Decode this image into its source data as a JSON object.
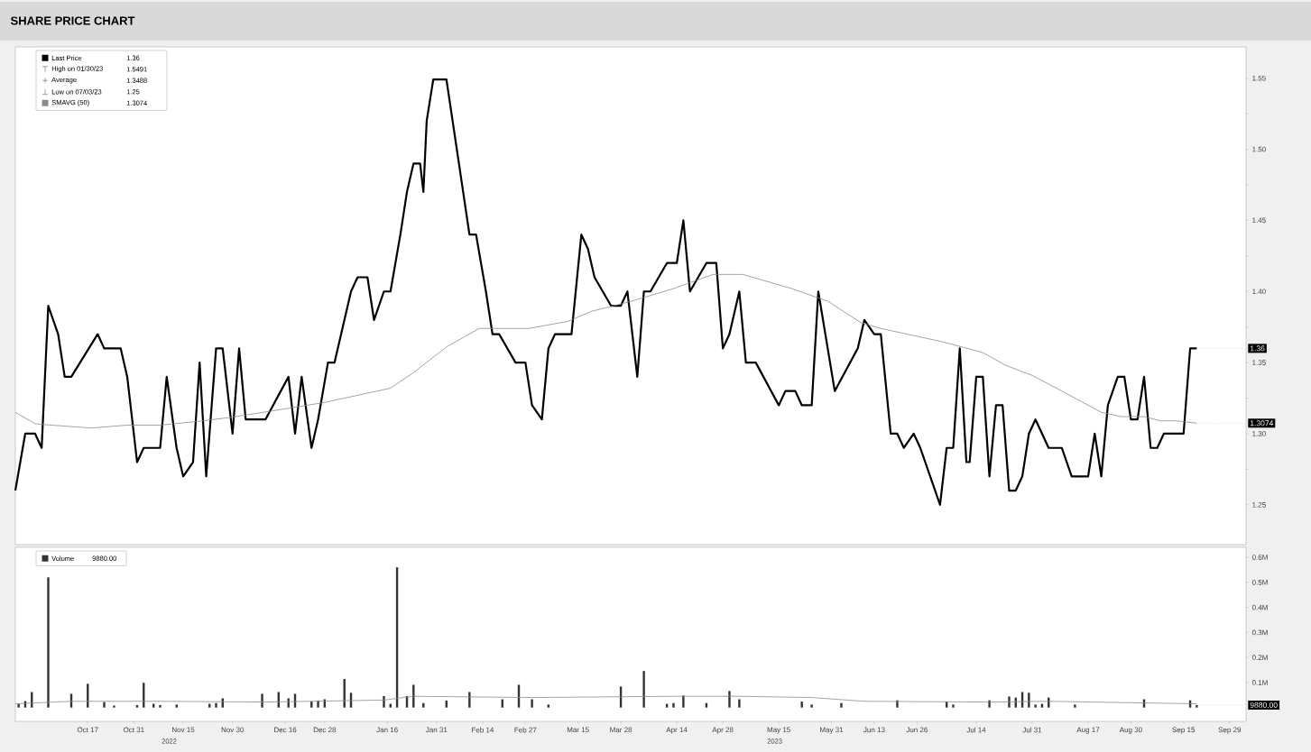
{
  "chart_data": [
    {
      "type": "line",
      "title": "SHARE PRICE CHART",
      "legend": "top left",
      "tick_labels": "y",
      "xlim": [
        "2022-09-25",
        "2023-10-04"
      ],
      "ylim": [
        1.222,
        1.572
      ],
      "yticks": [
        {
          "value": 1.25,
          "label": "1.25"
        },
        {
          "value": 1.275,
          "label": null
        },
        {
          "value": 1.3,
          "label": "1.30"
        },
        {
          "value": 1.325,
          "label": null
        },
        {
          "value": 1.35,
          "label": "1.35"
        },
        {
          "value": 1.375,
          "label": null
        },
        {
          "value": 1.4,
          "label": "1.40"
        },
        {
          "value": 1.425,
          "label": null
        },
        {
          "value": 1.45,
          "label": "1.45"
        },
        {
          "value": 1.475,
          "label": null
        },
        {
          "value": 1.5,
          "label": "1.50"
        },
        {
          "value": 1.525,
          "label": null
        },
        {
          "value": 1.55,
          "label": "1.55"
        }
      ],
      "annotations": [
        "1.36",
        "High on 01/30/23",
        "1.5491",
        "Average",
        "1.3488",
        "Low on 07/03/23",
        "1.25",
        "1.3074",
        {
          "text": "1.36",
          "x": "2023-09-19",
          "y": 1.36
        },
        {
          "text": "1.3074",
          "x": "2023-09-19",
          "y": 1.3074
        }
      ],
      "series": [
        {
          "name": "Last Price",
          "color": "#000000",
          "x": [
            "2022-09-25",
            "2022-09-28",
            "2022-10-01",
            "2022-10-03",
            "2022-10-05",
            "2022-10-08",
            "2022-10-10",
            "2022-10-12",
            "2022-10-20",
            "2022-10-22",
            "2022-10-27",
            "2022-10-29",
            "2022-11-01",
            "2022-11-03",
            "2022-11-08",
            "2022-11-10",
            "2022-11-13",
            "2022-11-15",
            "2022-11-18",
            "2022-11-20",
            "2022-11-22",
            "2022-11-25",
            "2022-11-27",
            "2022-11-30",
            "2022-12-02",
            "2022-12-04",
            "2022-12-10",
            "2022-12-17",
            "2022-12-19",
            "2022-12-21",
            "2022-12-24",
            "2022-12-26",
            "2022-12-29",
            "2022-12-31",
            "2023-01-03",
            "2023-01-05",
            "2023-01-07",
            "2023-01-10",
            "2023-01-12",
            "2023-01-15",
            "2023-01-17",
            "2023-01-20",
            "2023-01-22",
            "2023-01-24",
            "2023-01-26",
            "2023-01-27",
            "2023-01-28",
            "2023-01-30",
            "2023-02-03",
            "2023-02-10",
            "2023-02-12",
            "2023-02-15",
            "2023-02-17",
            "2023-02-19",
            "2023-02-24",
            "2023-02-27",
            "2023-03-01",
            "2023-03-04",
            "2023-03-06",
            "2023-03-08",
            "2023-03-13",
            "2023-03-16",
            "2023-03-18",
            "2023-03-20",
            "2023-03-25",
            "2023-03-28",
            "2023-03-30",
            "2023-04-02",
            "2023-04-04",
            "2023-04-06",
            "2023-04-11",
            "2023-04-14",
            "2023-04-16",
            "2023-04-18",
            "2023-04-23",
            "2023-04-26",
            "2023-04-28",
            "2023-04-30",
            "2023-05-03",
            "2023-05-05",
            "2023-05-08",
            "2023-05-15",
            "2023-05-17",
            "2023-05-20",
            "2023-05-22",
            "2023-05-25",
            "2023-05-27",
            "2023-06-01",
            "2023-06-08",
            "2023-06-10",
            "2023-06-13",
            "2023-06-15",
            "2023-06-18",
            "2023-06-20",
            "2023-06-22",
            "2023-06-25",
            "2023-06-27",
            "2023-07-03",
            "2023-07-05",
            "2023-07-07",
            "2023-07-09",
            "2023-07-11",
            "2023-07-12",
            "2023-07-14",
            "2023-07-16",
            "2023-07-18",
            "2023-07-20",
            "2023-07-22",
            "2023-07-24",
            "2023-07-26",
            "2023-07-28",
            "2023-07-30",
            "2023-08-01",
            "2023-08-05",
            "2023-08-09",
            "2023-08-12",
            "2023-08-17",
            "2023-08-19",
            "2023-08-21",
            "2023-08-23",
            "2023-08-26",
            "2023-08-28",
            "2023-08-30",
            "2023-09-01",
            "2023-09-03",
            "2023-09-05",
            "2023-09-07",
            "2023-09-09",
            "2023-09-15",
            "2023-09-17",
            "2023-09-19"
          ],
          "values": [
            1.26,
            1.3,
            1.3,
            1.29,
            1.39,
            1.37,
            1.34,
            1.34,
            1.37,
            1.36,
            1.36,
            1.34,
            1.28,
            1.29,
            1.29,
            1.34,
            1.29,
            1.27,
            1.28,
            1.35,
            1.27,
            1.36,
            1.36,
            1.3,
            1.36,
            1.31,
            1.31,
            1.34,
            1.3,
            1.34,
            1.29,
            1.31,
            1.35,
            1.35,
            1.38,
            1.4,
            1.41,
            1.41,
            1.38,
            1.4,
            1.4,
            1.44,
            1.47,
            1.49,
            1.49,
            1.47,
            1.52,
            1.5491,
            1.5491,
            1.44,
            1.44,
            1.4,
            1.37,
            1.37,
            1.35,
            1.35,
            1.32,
            1.31,
            1.36,
            1.37,
            1.37,
            1.44,
            1.43,
            1.41,
            1.39,
            1.39,
            1.4,
            1.34,
            1.4,
            1.4,
            1.42,
            1.42,
            1.45,
            1.4,
            1.42,
            1.42,
            1.36,
            1.37,
            1.4,
            1.35,
            1.35,
            1.32,
            1.33,
            1.33,
            1.32,
            1.32,
            1.4,
            1.33,
            1.36,
            1.38,
            1.37,
            1.37,
            1.3,
            1.3,
            1.29,
            1.3,
            1.29,
            1.25,
            1.29,
            1.29,
            1.36,
            1.28,
            1.28,
            1.34,
            1.34,
            1.27,
            1.32,
            1.32,
            1.26,
            1.26,
            1.27,
            1.3,
            1.31,
            1.29,
            1.29,
            1.27,
            1.27,
            1.3,
            1.27,
            1.32,
            1.34,
            1.34,
            1.31,
            1.31,
            1.34,
            1.29,
            1.29,
            1.3,
            1.3,
            1.36,
            1.36
          ]
        },
        {
          "name": "SMAVG (50)",
          "color": "#8c8c8c",
          "x": [
            "2022-09-25",
            "2022-10-01",
            "2022-10-06",
            "2022-10-18",
            "2022-10-29",
            "2022-11-08",
            "2022-11-21",
            "2022-12-01",
            "2022-12-12",
            "2022-12-28",
            "2023-01-05",
            "2023-01-17",
            "2023-01-24",
            "2023-02-03",
            "2023-02-13",
            "2023-02-28",
            "2023-03-12",
            "2023-03-19",
            "2023-03-31",
            "2023-04-13",
            "2023-04-25",
            "2023-05-04",
            "2023-05-19",
            "2023-05-30",
            "2023-06-09",
            "2023-06-15",
            "2023-07-03",
            "2023-07-08",
            "2023-07-16",
            "2023-07-23",
            "2023-07-31",
            "2023-08-09",
            "2023-08-21",
            "2023-08-27",
            "2023-09-03",
            "2023-09-08",
            "2023-09-13",
            "2023-09-19"
          ],
          "values": [
            1.315,
            1.307,
            1.306,
            1.304,
            1.306,
            1.306,
            1.309,
            1.312,
            1.316,
            1.322,
            1.326,
            1.332,
            1.343,
            1.361,
            1.374,
            1.374,
            1.379,
            1.386,
            1.393,
            1.402,
            1.412,
            1.412,
            1.402,
            1.393,
            1.378,
            1.374,
            1.365,
            1.362,
            1.357,
            1.348,
            1.341,
            1.33,
            1.315,
            1.312,
            1.312,
            1.309,
            1.309,
            1.3074
          ]
        }
      ]
    },
    {
      "type": "bar",
      "legend": "top left",
      "xlim": [
        "2022-09-25",
        "2023-10-04"
      ],
      "ylim": [
        -55000,
        640000
      ],
      "xticks": [
        {
          "value": "2022-10-17",
          "label": "Oct 17"
        },
        {
          "value": "2022-10-31",
          "label": "Oct 31"
        },
        {
          "value": "2022-11-15",
          "label": "Nov 15"
        },
        {
          "value": "2022-11-30",
          "label": "Nov 30"
        },
        {
          "value": "2022-12-16",
          "label": "Dec 16"
        },
        {
          "value": "2022-12-28",
          "label": "Dec 28"
        },
        {
          "value": "2023-01-16",
          "label": "Jan 16"
        },
        {
          "value": "2023-01-31",
          "label": "Jan 31"
        },
        {
          "value": "2023-02-14",
          "label": "Feb 14"
        },
        {
          "value": "2023-02-27",
          "label": "Feb 27"
        },
        {
          "value": "2023-03-15",
          "label": "Mar 15"
        },
        {
          "value": "2023-03-28",
          "label": "Mar 28"
        },
        {
          "value": "2023-04-14",
          "label": "Apr 14"
        },
        {
          "value": "2023-04-28",
          "label": "Apr 28"
        },
        {
          "value": "2023-05-15",
          "label": "May 15"
        },
        {
          "value": "2023-05-31",
          "label": "May 31"
        },
        {
          "value": "2023-06-13",
          "label": "Jun 13"
        },
        {
          "value": "2023-06-26",
          "label": "Jun 26"
        },
        {
          "value": "2023-07-14",
          "label": "Jul 14"
        },
        {
          "value": "2023-07-31",
          "label": "Jul 31"
        },
        {
          "value": "2023-08-17",
          "label": "Aug 17"
        },
        {
          "value": "2023-08-30",
          "label": "Aug 30"
        },
        {
          "value": "2023-09-15",
          "label": "Sep 15"
        },
        {
          "value": "2023-09-29",
          "label": "Sep 29"
        }
      ],
      "yticks": [
        {
          "value": 100000,
          "label": "0.1M"
        },
        {
          "value": 200000,
          "label": "0.2M"
        },
        {
          "value": 300000,
          "label": "0.3M"
        },
        {
          "value": 400000,
          "label": "0.4M"
        },
        {
          "value": 500000,
          "label": "0.5M"
        },
        {
          "value": 600000,
          "label": "0.6M"
        }
      ],
      "annotations": [
        "9880.00",
        {
          "text": "9880.00",
          "x": "2023-09-19",
          "y": 9880
        },
        "2022",
        "2023"
      ],
      "series": [
        {
          "name": "Volume",
          "type": "bar",
          "color": "#333333",
          "x": [
            "2022-09-26",
            "2022-09-28",
            "2022-09-30",
            "2022-10-05",
            "2022-10-12",
            "2022-10-17",
            "2022-10-22",
            "2022-10-25",
            "2022-11-01",
            "2022-11-03",
            "2022-11-06",
            "2022-11-08",
            "2022-11-13",
            "2022-11-23",
            "2022-11-25",
            "2022-11-27",
            "2022-12-09",
            "2022-12-14",
            "2022-12-17",
            "2022-12-19",
            "2022-12-24",
            "2022-12-26",
            "2022-12-28",
            "2023-01-03",
            "2023-01-05",
            "2023-01-15",
            "2023-01-17",
            "2023-01-19",
            "2023-01-22",
            "2023-01-24",
            "2023-01-27",
            "2023-02-03",
            "2023-02-10",
            "2023-02-20",
            "2023-02-25",
            "2023-03-01",
            "2023-03-06",
            "2023-03-28",
            "2023-04-04",
            "2023-04-11",
            "2023-04-13",
            "2023-04-16",
            "2023-04-23",
            "2023-04-30",
            "2023-05-03",
            "2023-05-22",
            "2023-05-25",
            "2023-06-03",
            "2023-06-20",
            "2023-07-05",
            "2023-07-07",
            "2023-07-18",
            "2023-07-24",
            "2023-07-26",
            "2023-07-28",
            "2023-07-30",
            "2023-08-01",
            "2023-08-03",
            "2023-08-05",
            "2023-08-13",
            "2023-09-03",
            "2023-09-17",
            "2023-09-19"
          ],
          "values": [
            15000,
            26000,
            62000,
            520000,
            55000,
            95000,
            22000,
            8000,
            10000,
            99000,
            15000,
            10000,
            12000,
            15000,
            18000,
            37000,
            55000,
            62000,
            37000,
            55000,
            24000,
            28000,
            33000,
            114000,
            59000,
            46000,
            15000,
            560000,
            46000,
            91000,
            18000,
            28000,
            62000,
            33000,
            91000,
            33000,
            12000,
            84000,
            146000,
            15000,
            18000,
            48000,
            18000,
            66000,
            33000,
            24000,
            12000,
            18000,
            29000,
            24000,
            12000,
            29000,
            44000,
            40000,
            62000,
            59000,
            12000,
            15000,
            40000,
            12000,
            33000,
            29000,
            9880
          ]
        },
        {
          "type": "line",
          "color": "#8c8c8c",
          "x": [
            "2022-09-25",
            "2022-10-12",
            "2022-11-08",
            "2022-12-10",
            "2023-01-15",
            "2023-01-24",
            "2023-03-01",
            "2023-04-13",
            "2023-05-03",
            "2023-05-25",
            "2023-06-10",
            "2023-07-18",
            "2023-08-05",
            "2023-09-19"
          ],
          "values": [
            15000,
            25000,
            25000,
            22000,
            30000,
            45000,
            40000,
            45000,
            45000,
            40000,
            25000,
            22000,
            25000,
            15000
          ]
        }
      ]
    }
  ]
}
